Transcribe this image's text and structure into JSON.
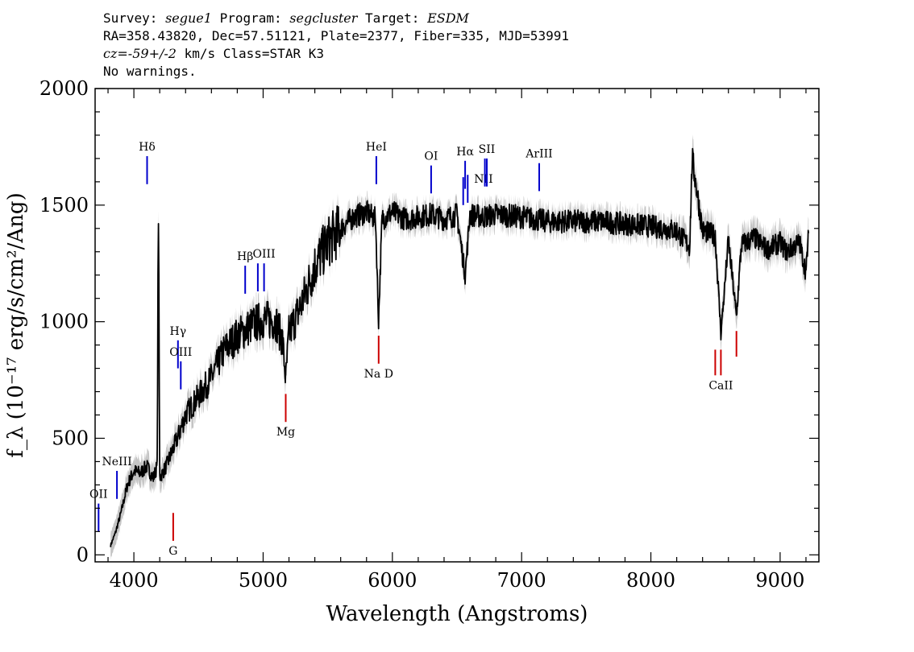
{
  "header": {
    "survey_label": "Survey:",
    "survey": "segue1",
    "program_label": "Program:",
    "program": "segcluster",
    "target_label": "Target:",
    "target": "ESDM",
    "line2": "RA=358.43820, Dec=57.51121, Plate=2377, Fiber=335, MJD=53991",
    "cz_label": "cz",
    "cz_value": "=-59+/-2",
    "cz_rest": " km/s Class=STAR K3",
    "warnings": "No warnings."
  },
  "chart_data": {
    "type": "line",
    "title": "",
    "xlabel": "Wavelength (Angstroms)",
    "ylabel": "f_λ (10⁻¹⁷ erg/s/cm²/Ang)",
    "xlim": [
      3700,
      9300
    ],
    "ylim": [
      -30,
      2000
    ],
    "x_ticks": [
      4000,
      5000,
      6000,
      7000,
      8000,
      9000
    ],
    "y_ticks": [
      0,
      500,
      1000,
      1500,
      2000
    ],
    "colors": {
      "flux": "#000000",
      "error": "#c4c4c4",
      "emission": "#0000cc",
      "absorption": "#cc0000"
    },
    "series": [
      {
        "name": "flux",
        "x": [
          3820,
          3860,
          3900,
          3950,
          4000,
          4050,
          4100,
          4150,
          4180,
          4190,
          4200,
          4250,
          4300,
          4350,
          4400,
          4500,
          4600,
          4700,
          4800,
          4900,
          5000,
          5100,
          5150,
          5175,
          5200,
          5300,
          5400,
          5500,
          5600,
          5700,
          5800,
          5870,
          5893,
          5920,
          6000,
          6100,
          6200,
          6300,
          6400,
          6500,
          6563,
          6600,
          6700,
          6800,
          7000,
          7200,
          7400,
          7600,
          7800,
          8000,
          8200,
          8300,
          8320,
          8400,
          8498,
          8542,
          8600,
          8662,
          8700,
          8800,
          8900,
          9000,
          9050,
          9100,
          9150,
          9200,
          9220
        ],
        "y": [
          40,
          100,
          180,
          300,
          360,
          350,
          380,
          330,
          380,
          1500,
          330,
          380,
          450,
          520,
          600,
          680,
          760,
          880,
          940,
          980,
          1010,
          1000,
          920,
          750,
          950,
          1080,
          1240,
          1340,
          1400,
          1450,
          1470,
          1440,
          1000,
          1440,
          1470,
          1440,
          1450,
          1460,
          1440,
          1460,
          1200,
          1460,
          1450,
          1460,
          1450,
          1430,
          1430,
          1430,
          1420,
          1410,
          1390,
          1320,
          1700,
          1390,
          1370,
          950,
          1350,
          1020,
          1330,
          1360,
          1310,
          1340,
          1300,
          1320,
          1340,
          1210,
          1380
        ]
      }
    ],
    "lines": [
      {
        "label": "OII",
        "wavelength": 3727,
        "kind": "emission",
        "y_low": 100,
        "y_high": 220,
        "label_pos": "above"
      },
      {
        "label": "NeIII",
        "wavelength": 3869,
        "kind": "emission",
        "y_low": 240,
        "y_high": 360,
        "label_pos": "above"
      },
      {
        "label": "Hδ",
        "wavelength": 4102,
        "kind": "emission",
        "y_low": 1590,
        "y_high": 1710,
        "label_pos": "above"
      },
      {
        "label": "Hγ",
        "wavelength": 4341,
        "kind": "emission",
        "y_low": 800,
        "y_high": 920,
        "label_pos": "above"
      },
      {
        "label": "OIII",
        "wavelength": 4363,
        "kind": "emission",
        "y_low": 710,
        "y_high": 830,
        "label_pos": "above"
      },
      {
        "label": "Hβ",
        "wavelength": 4861,
        "kind": "emission",
        "y_low": 1120,
        "y_high": 1240,
        "label_pos": "above"
      },
      {
        "label": "OIII",
        "wavelength": 4959,
        "kind": "emission",
        "y_low": 1130,
        "y_high": 1250,
        "label_pos": "none"
      },
      {
        "label": "OIII",
        "wavelength": 5007,
        "kind": "emission",
        "y_low": 1130,
        "y_high": 1250,
        "label_pos": "above"
      },
      {
        "label": "HeI",
        "wavelength": 5876,
        "kind": "emission",
        "y_low": 1590,
        "y_high": 1710,
        "label_pos": "above"
      },
      {
        "label": "OI",
        "wavelength": 6300,
        "kind": "emission",
        "y_low": 1550,
        "y_high": 1670,
        "label_pos": "above"
      },
      {
        "label": "NII",
        "wavelength": 6548,
        "kind": "emission",
        "y_low": 1500,
        "y_high": 1620,
        "label_pos": "none"
      },
      {
        "label": "Hα",
        "wavelength": 6563,
        "kind": "emission",
        "y_low": 1570,
        "y_high": 1690,
        "label_pos": "above"
      },
      {
        "label": "NII",
        "wavelength": 6583,
        "kind": "emission",
        "y_low": 1510,
        "y_high": 1630,
        "label_pos": "left"
      },
      {
        "label": "SII",
        "wavelength": 6716,
        "kind": "emission",
        "y_low": 1580,
        "y_high": 1700,
        "label_pos": "none"
      },
      {
        "label": "SII",
        "wavelength": 6731,
        "kind": "emission",
        "y_low": 1580,
        "y_high": 1700,
        "label_pos": "above"
      },
      {
        "label": "ArIII",
        "wavelength": 7136,
        "kind": "emission",
        "y_low": 1560,
        "y_high": 1680,
        "label_pos": "above"
      },
      {
        "label": "G",
        "wavelength": 4304,
        "kind": "absorption",
        "y_low": 60,
        "y_high": 180,
        "label_pos": "below"
      },
      {
        "label": "Mg",
        "wavelength": 5175,
        "kind": "absorption",
        "y_low": 570,
        "y_high": 690,
        "label_pos": "below"
      },
      {
        "label": "Na D",
        "wavelength": 5894,
        "kind": "absorption",
        "y_low": 820,
        "y_high": 940,
        "label_pos": "below"
      },
      {
        "label": "CaII",
        "wavelength": 8498,
        "kind": "absorption",
        "y_low": 770,
        "y_high": 880,
        "label_pos": "none"
      },
      {
        "label": "CaII",
        "wavelength": 8542,
        "kind": "absorption",
        "y_low": 770,
        "y_high": 880,
        "label_pos": "below"
      },
      {
        "label": "CaII",
        "wavelength": 8662,
        "kind": "absorption",
        "y_low": 850,
        "y_high": 960,
        "label_pos": "none"
      }
    ]
  }
}
